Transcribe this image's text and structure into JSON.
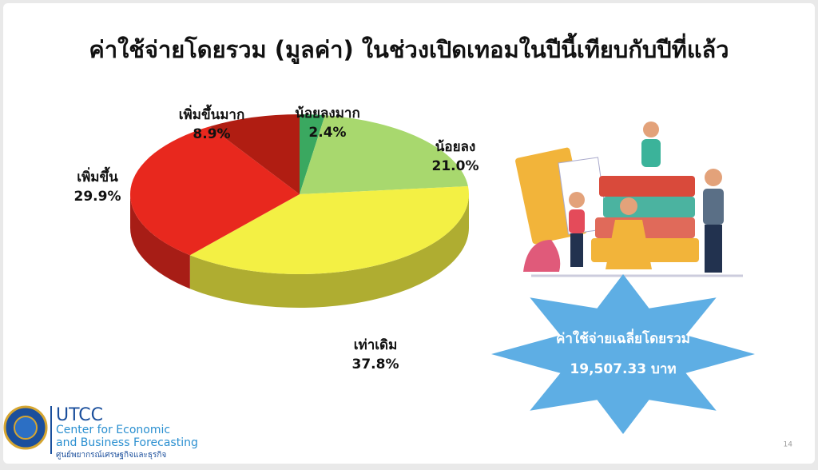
{
  "chart_data": {
    "type": "pie3d",
    "title": "ค่าใช้จ่ายโดยรวม (มูลค่า) ในช่วงเปิดเทอมในปีนี้เทียบกับปีที่แล้ว",
    "categories": [
      "น้อยลงมาก",
      "น้อยลง",
      "เท่าเดิม",
      "เพิ่มขึ้น",
      "เพิ่มขึ้นมาก"
    ],
    "values": [
      2.4,
      21.0,
      37.8,
      29.9,
      8.9
    ],
    "value_labels": [
      "2.4%",
      "21.0%",
      "37.8%",
      "29.9%",
      "8.9%"
    ],
    "colors": [
      "#3aa860",
      "#a8d86e",
      "#f3f044",
      "#e8281e",
      "#b01d12"
    ]
  },
  "callout": {
    "title": "ค่าใช้จ่ายเฉลี่ยโดยรวม",
    "value": "19,507.33 บาท"
  },
  "logo": {
    "name": "UTCC",
    "line1": "Center for Economic",
    "line2": "and Business Forecasting",
    "line3": "ศูนย์พยากรณ์เศรษฐกิจและธุรกิจ"
  },
  "page_number": "14"
}
